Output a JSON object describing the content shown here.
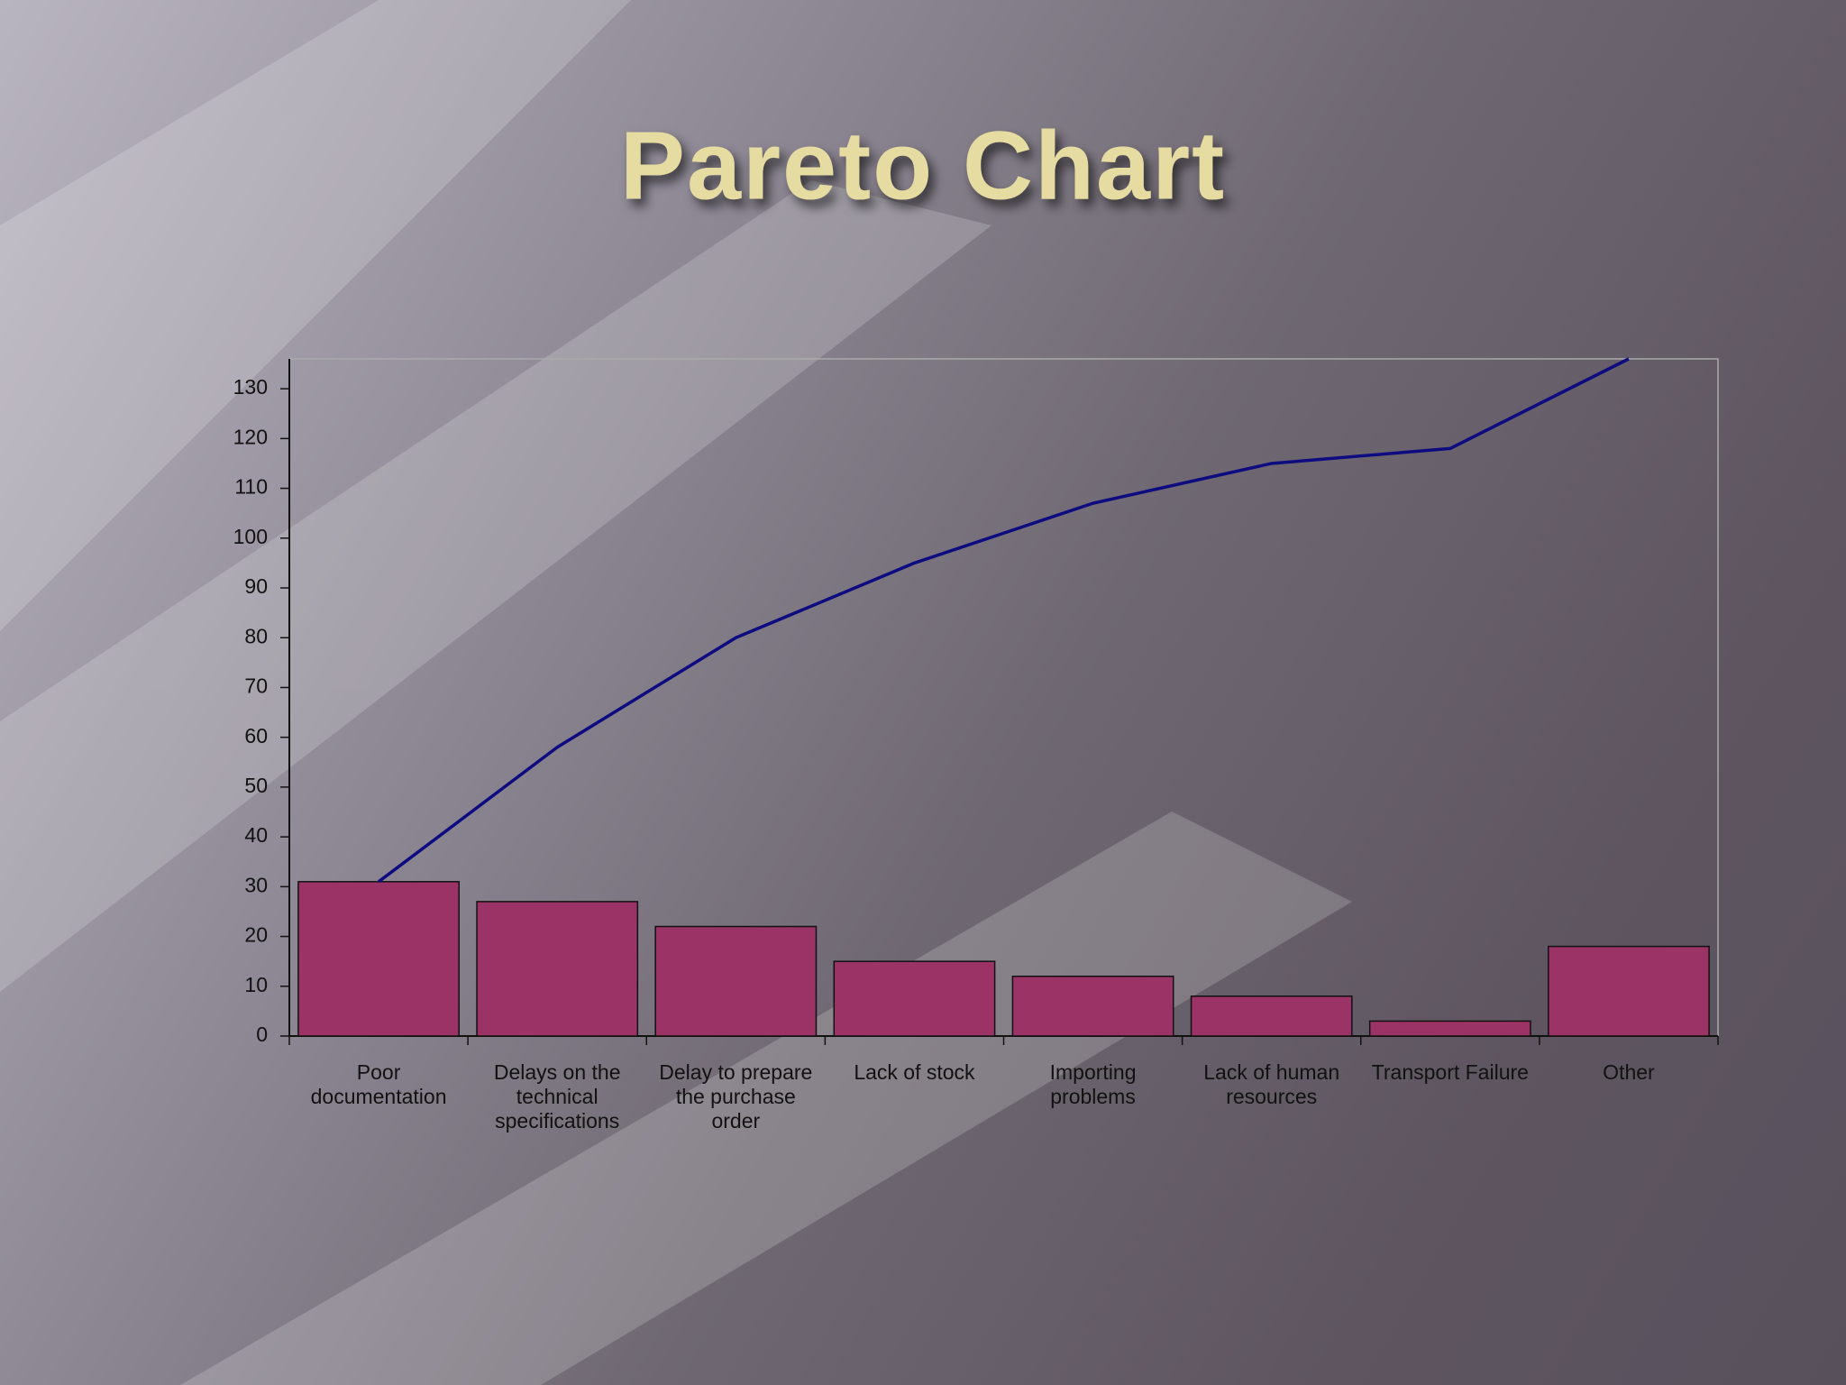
{
  "chart_data": {
    "type": "bar",
    "title": "Pareto Chart",
    "categories": [
      "Poor documentation",
      "Delays on the technical specifications",
      "Delay to prepare the purchase order",
      "Lack of stock",
      "Importing problems",
      "Lack of human resources",
      "Transport Failure",
      "Other"
    ],
    "series": [
      {
        "type": "bar",
        "color": "#9b3366",
        "values": [
          31,
          27,
          22,
          15,
          12,
          8,
          3,
          18
        ]
      },
      {
        "type": "line",
        "color": "#0c0c80",
        "values": [
          31,
          58,
          80,
          95,
          107,
          115,
          118,
          136
        ]
      }
    ],
    "ylim": [
      0,
      136
    ],
    "yticks": [
      0,
      10,
      20,
      30,
      40,
      50,
      60,
      70,
      80,
      90,
      100,
      110,
      120,
      130
    ]
  }
}
